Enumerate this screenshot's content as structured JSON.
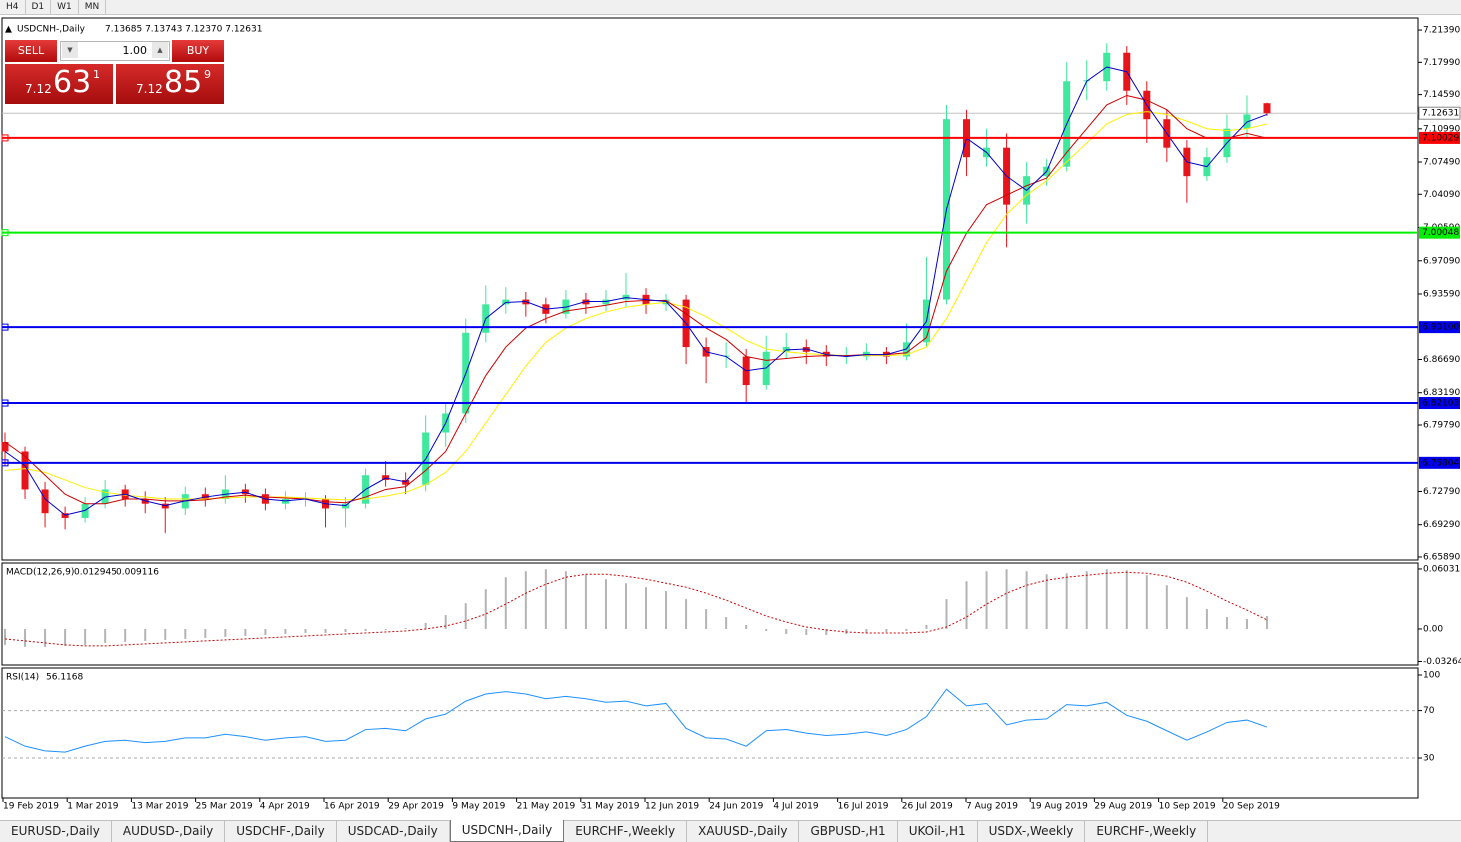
{
  "toolbar": {
    "timeframes": [
      "H4",
      "D1",
      "W1",
      "MN"
    ]
  },
  "trade_panel": {
    "sell": "SELL",
    "buy": "BUY",
    "lot": "1.00",
    "bid_big": "7.12",
    "bid_digits": "63",
    "bid_pip": "1",
    "ask_big": "7.12",
    "ask_digits": "85",
    "ask_pip": "9"
  },
  "tabs": [
    "EURUSD-,Daily",
    "AUDUSD-,Daily",
    "USDCHF-,Daily",
    "USDCAD-,Daily",
    "USDCNH-,Daily",
    "EURCHF-,Weekly",
    "XAUUSD-,Daily",
    "GBPUSD-,H1",
    "UKOil-,H1",
    "USDX-,Weekly",
    "EURCHF-,Weekly"
  ],
  "chart_data": {
    "type": "candlestick",
    "title": "USDCNH-,Daily",
    "header_ohlc": "7.13685 7.13743 7.12370 7.12631",
    "up_color": "#3ee89c",
    "down_color": "#e8141c",
    "ylim": [
      6.6557,
      7.2266
    ],
    "yticks": [
      {
        "value": 7.2139,
        "label": "7.21390"
      },
      {
        "value": 7.1799,
        "label": "7.17990"
      },
      {
        "value": 7.1459,
        "label": "7.14590"
      },
      {
        "value": 7.1099,
        "label": "7.10990"
      },
      {
        "value": 7.0749,
        "label": "7.07490"
      },
      {
        "value": 7.0409,
        "label": "7.04090"
      },
      {
        "value": 7.0059,
        "label": "7.00590"
      },
      {
        "value": 6.9709,
        "label": "6.97090"
      },
      {
        "value": 6.9359,
        "label": "6.93590"
      },
      {
        "value": 6.8669,
        "label": "6.86690"
      },
      {
        "value": 6.8319,
        "label": "6.83190"
      },
      {
        "value": 6.7979,
        "label": "6.79790"
      },
      {
        "value": 6.7279,
        "label": "6.72790"
      },
      {
        "value": 6.6929,
        "label": "6.69290"
      },
      {
        "value": 6.6589,
        "label": "6.65890"
      }
    ],
    "x_labels": [
      "19 Feb 2019",
      "1 Mar 2019",
      "13 Mar 2019",
      "25 Mar 2019",
      "4 Apr 2019",
      "16 Apr 2019",
      "29 Apr 2019",
      "9 May 2019",
      "21 May 2019",
      "31 May 2019",
      "12 Jun 2019",
      "24 Jun 2019",
      "4 Jul 2019",
      "16 Jul 2019",
      "26 Jul 2019",
      "7 Aug 2019",
      "19 Aug 2019",
      "29 Aug 2019",
      "10 Sep 2019",
      "20 Sep 2019"
    ],
    "current_price": 7.12631,
    "levels": [
      {
        "value": 7.10029,
        "color": "#ff0000"
      },
      {
        "value": 7.00048,
        "color": "#00ee00"
      },
      {
        "value": 6.901,
        "label": "6.90100",
        "color": "#0000ee"
      },
      {
        "value": 6.82103,
        "color": "#0000ee"
      },
      {
        "value": 6.75804,
        "color": "#0000ee"
      }
    ],
    "candles": [
      [
        6.78,
        6.79,
        6.755,
        6.77
      ],
      [
        6.77,
        6.775,
        6.72,
        6.73
      ],
      [
        6.73,
        6.738,
        6.69,
        6.705
      ],
      [
        6.705,
        6.712,
        6.688,
        6.7
      ],
      [
        6.7,
        6.722,
        6.695,
        6.715
      ],
      [
        6.715,
        6.74,
        6.71,
        6.73
      ],
      [
        6.73,
        6.735,
        6.712,
        6.72
      ],
      [
        6.72,
        6.728,
        6.705,
        6.715
      ],
      [
        6.715,
        6.722,
        6.684,
        6.71
      ],
      [
        6.71,
        6.733,
        6.703,
        6.725
      ],
      [
        6.725,
        6.732,
        6.712,
        6.72
      ],
      [
        6.72,
        6.745,
        6.715,
        6.73
      ],
      [
        6.73,
        6.736,
        6.716,
        6.725
      ],
      [
        6.725,
        6.731,
        6.708,
        6.715
      ],
      [
        6.715,
        6.728,
        6.709,
        6.72
      ],
      [
        6.72,
        6.727,
        6.712,
        6.721
      ],
      [
        6.72,
        6.724,
        6.69,
        6.71
      ],
      [
        6.71,
        6.722,
        6.69,
        6.715
      ],
      [
        6.715,
        6.752,
        6.71,
        6.745
      ],
      [
        6.745,
        6.76,
        6.733,
        6.74
      ],
      [
        6.74,
        6.748,
        6.725,
        6.735
      ],
      [
        6.735,
        6.808,
        6.728,
        6.79
      ],
      [
        6.79,
        6.822,
        6.775,
        6.81
      ],
      [
        6.81,
        6.91,
        6.8,
        6.895
      ],
      [
        6.895,
        6.945,
        6.885,
        6.925
      ],
      [
        6.925,
        6.943,
        6.915,
        6.93
      ],
      [
        6.93,
        6.938,
        6.912,
        6.925
      ],
      [
        6.925,
        6.932,
        6.905,
        6.915
      ],
      [
        6.915,
        6.94,
        6.91,
        6.93
      ],
      [
        6.93,
        6.937,
        6.915,
        6.925
      ],
      [
        6.925,
        6.94,
        6.918,
        6.93
      ],
      [
        6.93,
        6.958,
        6.922,
        6.935
      ],
      [
        6.935,
        6.942,
        6.915,
        6.925
      ],
      [
        6.925,
        6.936,
        6.918,
        6.93
      ],
      [
        6.93,
        6.935,
        6.862,
        6.88
      ],
      [
        6.88,
        6.89,
        6.842,
        6.87
      ],
      [
        6.87,
        6.885,
        6.858,
        6.871
      ],
      [
        6.87,
        6.878,
        6.822,
        6.84
      ],
      [
        6.84,
        6.892,
        6.835,
        6.875
      ],
      [
        6.875,
        6.895,
        6.868,
        6.88
      ],
      [
        6.88,
        6.888,
        6.862,
        6.875
      ],
      [
        6.875,
        6.882,
        6.86,
        6.87
      ],
      [
        6.87,
        6.88,
        6.862,
        6.871
      ],
      [
        6.87,
        6.884,
        6.866,
        6.875
      ],
      [
        6.875,
        6.88,
        6.862,
        6.87
      ],
      [
        6.87,
        6.905,
        6.866,
        6.885
      ],
      [
        6.885,
        6.975,
        6.88,
        6.93
      ],
      [
        6.93,
        7.135,
        6.925,
        7.12
      ],
      [
        7.12,
        7.13,
        7.06,
        7.08
      ],
      [
        7.08,
        7.11,
        7.07,
        7.09
      ],
      [
        7.09,
        7.105,
        6.985,
        7.03
      ],
      [
        7.03,
        7.075,
        7.01,
        7.06
      ],
      [
        7.06,
        7.078,
        7.05,
        7.07
      ],
      [
        7.07,
        7.18,
        7.065,
        7.16
      ],
      [
        7.16,
        7.182,
        7.14,
        7.161
      ],
      [
        7.16,
        7.2,
        7.15,
        7.19
      ],
      [
        7.19,
        7.197,
        7.135,
        7.15
      ],
      [
        7.15,
        7.16,
        7.095,
        7.12
      ],
      [
        7.12,
        7.13,
        7.075,
        7.09
      ],
      [
        7.09,
        7.098,
        7.032,
        7.06
      ],
      [
        7.06,
        7.09,
        7.055,
        7.08
      ],
      [
        7.08,
        7.125,
        7.074,
        7.11
      ],
      [
        7.11,
        7.145,
        7.1,
        7.125
      ],
      [
        7.13685,
        7.13743,
        7.1237,
        7.12631
      ]
    ],
    "ma_series": [
      {
        "color": "#ffee00",
        "values": [
          6.75,
          6.752,
          6.748,
          6.74,
          6.732,
          6.727,
          6.724,
          6.722,
          6.72,
          6.72,
          6.72,
          6.721,
          6.722,
          6.722,
          6.722,
          6.721,
          6.72,
          6.719,
          6.72,
          6.723,
          6.727,
          6.735,
          6.748,
          6.77,
          6.8,
          6.83,
          6.86,
          6.885,
          6.9,
          6.91,
          6.917,
          6.922,
          6.925,
          6.927,
          6.922,
          6.912,
          6.9,
          6.887,
          6.878,
          6.875,
          6.873,
          6.872,
          6.871,
          6.871,
          6.871,
          6.872,
          6.88,
          6.91,
          6.95,
          6.99,
          7.02,
          7.04,
          7.055,
          7.075,
          7.095,
          7.115,
          7.125,
          7.128,
          7.125,
          7.118,
          7.11,
          7.108,
          7.11,
          7.115
        ]
      },
      {
        "color": "#cc0000",
        "values": [
          6.78,
          6.765,
          6.745,
          6.725,
          6.715,
          6.715,
          6.72,
          6.72,
          6.718,
          6.718,
          6.719,
          6.722,
          6.724,
          6.722,
          6.721,
          6.72,
          6.717,
          6.716,
          6.722,
          6.73,
          6.733,
          6.75,
          6.77,
          6.81,
          6.85,
          6.88,
          6.9,
          6.91,
          6.918,
          6.921,
          6.924,
          6.928,
          6.929,
          6.929,
          6.915,
          6.9,
          6.888,
          6.87,
          6.866,
          6.868,
          6.87,
          6.871,
          6.871,
          6.872,
          6.872,
          6.874,
          6.89,
          6.96,
          7.0,
          7.03,
          7.04,
          7.05,
          7.058,
          7.085,
          7.11,
          7.135,
          7.145,
          7.14,
          7.13,
          7.11,
          7.1,
          7.1,
          7.105,
          7.1
        ]
      },
      {
        "color": "#0000cc",
        "values": [
          6.77,
          6.755,
          6.72,
          6.703,
          6.708,
          6.722,
          6.725,
          6.718,
          6.713,
          6.718,
          6.722,
          6.725,
          6.727,
          6.72,
          6.718,
          6.72,
          6.715,
          6.713,
          6.73,
          6.742,
          6.738,
          6.762,
          6.8,
          6.852,
          6.91,
          6.927,
          6.928,
          6.92,
          6.922,
          6.928,
          6.928,
          6.932,
          6.93,
          6.928,
          6.905,
          6.875,
          6.87,
          6.855,
          6.858,
          6.877,
          6.878,
          6.872,
          6.87,
          6.872,
          6.872,
          6.878,
          6.907,
          7.025,
          7.1,
          7.085,
          7.06,
          7.045,
          7.065,
          7.115,
          7.16,
          7.175,
          7.17,
          7.135,
          7.105,
          7.075,
          7.07,
          7.095,
          7.117,
          7.125
        ]
      }
    ],
    "macd": {
      "label": "MACD(12,26,9)",
      "ylim": [
        -0.0362,
        0.0663
      ],
      "yticks": [
        0.060317,
        {
          "value": 0,
          "label": "0.00"
        },
        -0.032648
      ],
      "hist_color": "#b4b4b4",
      "signal_color": "#cc0000",
      "histogram": [
        -0.016,
        -0.018,
        -0.018,
        -0.017,
        -0.016,
        -0.014,
        -0.013,
        -0.012,
        -0.011,
        -0.01,
        -0.009,
        -0.008,
        -0.007,
        -0.006,
        -0.005,
        -0.004,
        -0.004,
        -0.003,
        -0.002,
        -0.001,
        0.001,
        0.006,
        0.014,
        0.026,
        0.04,
        0.052,
        0.058,
        0.06,
        0.058,
        0.055,
        0.05,
        0.046,
        0.042,
        0.038,
        0.03,
        0.02,
        0.012,
        0.004,
        -0.002,
        -0.005,
        -0.006,
        -0.006,
        -0.005,
        -0.004,
        -0.003,
        -0.002,
        0.004,
        0.03,
        0.048,
        0.058,
        0.06,
        0.058,
        0.055,
        0.056,
        0.058,
        0.06,
        0.059,
        0.054,
        0.044,
        0.032,
        0.02,
        0.012,
        0.01,
        0.012945
      ],
      "signal": [
        -0.01,
        -0.012,
        -0.014,
        -0.016,
        -0.017,
        -0.017,
        -0.016,
        -0.015,
        -0.014,
        -0.013,
        -0.012,
        -0.011,
        -0.01,
        -0.009,
        -0.008,
        -0.007,
        -0.006,
        -0.005,
        -0.004,
        -0.003,
        -0.002,
        0.0,
        0.003,
        0.008,
        0.015,
        0.025,
        0.036,
        0.045,
        0.052,
        0.055,
        0.055,
        0.053,
        0.05,
        0.046,
        0.042,
        0.036,
        0.029,
        0.021,
        0.013,
        0.007,
        0.002,
        -0.001,
        -0.003,
        -0.004,
        -0.004,
        -0.004,
        -0.003,
        0.002,
        0.012,
        0.025,
        0.036,
        0.044,
        0.049,
        0.052,
        0.054,
        0.056,
        0.057,
        0.056,
        0.053,
        0.047,
        0.038,
        0.028,
        0.019,
        0.009116
      ]
    },
    "rsi": {
      "label": "RSI(14)",
      "ylim": [
        -3.7,
        105.9
      ],
      "yticks": [
        100,
        70,
        30
      ],
      "levels": [
        70,
        30
      ],
      "color": "#1e90ff",
      "values": [
        48,
        40,
        36,
        35,
        40,
        44,
        45,
        43,
        44,
        47,
        47,
        50,
        48,
        45,
        47,
        48,
        44,
        45,
        54,
        55,
        53,
        63,
        67,
        78,
        84,
        86,
        84,
        80,
        82,
        80,
        77,
        78,
        74,
        76,
        55,
        47,
        46,
        40,
        53,
        54,
        51,
        49,
        50,
        52,
        49,
        54,
        65,
        88,
        74,
        76,
        58,
        62,
        63,
        75,
        74,
        77,
        66,
        61,
        53,
        45,
        52,
        60,
        62,
        56.1168
      ]
    }
  }
}
